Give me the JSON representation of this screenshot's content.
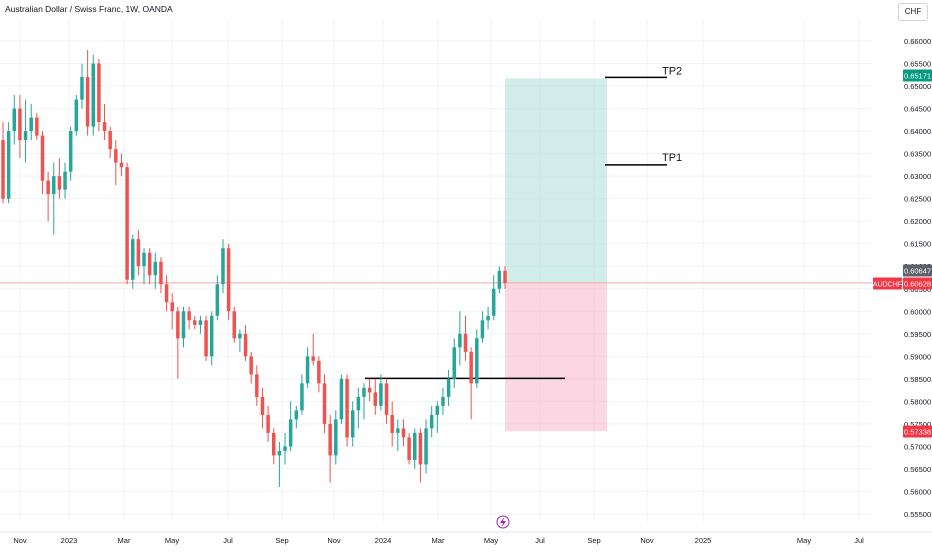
{
  "header": {
    "title": "Australian Dollar / Swiss Franc, 1W, OANDA",
    "currency": "CHF"
  },
  "colors": {
    "up": "#26a69a",
    "down": "#ef5350",
    "grid": "#f0f3fa",
    "axis_text": "#131722",
    "profit_zone": "#b2dfdb",
    "loss_zone": "#f8bbd0",
    "current_line": "#f7a8a8",
    "tp_label_bg": "#089981",
    "sl_label_bg": "#f23645"
  },
  "chart_data": {
    "type": "candlestick",
    "symbol": "AUDCHF",
    "y_ticks": [
      "0.66000",
      "0.65500",
      "0.65000",
      "0.64500",
      "0.64000",
      "0.63500",
      "0.63000",
      "0.62500",
      "0.62000",
      "0.61500",
      "0.61000",
      "0.60500",
      "0.60000",
      "0.59500",
      "0.59000",
      "0.58500",
      "0.58000",
      "0.57500",
      "0.57000",
      "0.56500",
      "0.56000",
      "0.55500"
    ],
    "ylim": [
      0.5525,
      0.6625
    ],
    "x_ticks": [
      "Nov",
      "2023",
      "Mar",
      "May",
      "Jul",
      "Sep",
      "Nov",
      "2024",
      "Mar",
      "May",
      "Jul",
      "Sep",
      "Nov",
      "2025",
      "May",
      "Jul"
    ],
    "price_labels": {
      "last_price": "0.60647",
      "symbol_label": "AUDCHF",
      "symbol_price": "0.60628",
      "take_profit": "0.65171",
      "stop_loss": "0.57338"
    },
    "annotations": {
      "tp1_label": "TP1",
      "tp2_label": "TP2"
    },
    "levels": {
      "tp1": 0.6325,
      "tp2": 0.6517,
      "entry": 0.6063,
      "stop": 0.5734,
      "support": 0.5851
    },
    "candles_ohlc": [
      [
        0.638,
        0.642,
        0.624,
        0.625
      ],
      [
        0.625,
        0.642,
        0.624,
        0.64
      ],
      [
        0.64,
        0.648,
        0.637,
        0.645
      ],
      [
        0.645,
        0.648,
        0.634,
        0.638
      ],
      [
        0.638,
        0.647,
        0.633,
        0.64
      ],
      [
        0.64,
        0.646,
        0.638,
        0.643
      ],
      [
        0.643,
        0.644,
        0.638,
        0.639
      ],
      [
        0.639,
        0.64,
        0.626,
        0.629
      ],
      [
        0.629,
        0.631,
        0.62,
        0.626
      ],
      [
        0.626,
        0.633,
        0.617,
        0.63
      ],
      [
        0.63,
        0.634,
        0.625,
        0.627
      ],
      [
        0.627,
        0.633,
        0.625,
        0.631
      ],
      [
        0.631,
        0.641,
        0.629,
        0.64
      ],
      [
        0.64,
        0.648,
        0.639,
        0.647
      ],
      [
        0.647,
        0.655,
        0.645,
        0.652
      ],
      [
        0.652,
        0.658,
        0.639,
        0.641
      ],
      [
        0.641,
        0.657,
        0.639,
        0.655
      ],
      [
        0.655,
        0.656,
        0.64,
        0.642
      ],
      [
        0.642,
        0.646,
        0.638,
        0.64
      ],
      [
        0.64,
        0.641,
        0.634,
        0.636
      ],
      [
        0.636,
        0.638,
        0.628,
        0.633
      ],
      [
        0.633,
        0.635,
        0.63,
        0.632
      ],
      [
        0.632,
        0.633,
        0.606,
        0.607
      ],
      [
        0.607,
        0.617,
        0.605,
        0.616
      ],
      [
        0.616,
        0.618,
        0.608,
        0.61
      ],
      [
        0.61,
        0.614,
        0.606,
        0.613
      ],
      [
        0.613,
        0.614,
        0.606,
        0.608
      ],
      [
        0.608,
        0.613,
        0.605,
        0.611
      ],
      [
        0.611,
        0.612,
        0.604,
        0.606
      ],
      [
        0.606,
        0.608,
        0.6,
        0.602
      ],
      [
        0.602,
        0.604,
        0.596,
        0.6
      ],
      [
        0.6,
        0.601,
        0.585,
        0.594
      ],
      [
        0.594,
        0.601,
        0.592,
        0.6
      ],
      [
        0.6,
        0.601,
        0.596,
        0.598
      ],
      [
        0.598,
        0.599,
        0.596,
        0.597
      ],
      [
        0.597,
        0.599,
        0.595,
        0.598
      ],
      [
        0.598,
        0.599,
        0.589,
        0.59
      ],
      [
        0.59,
        0.6,
        0.588,
        0.599
      ],
      [
        0.599,
        0.608,
        0.598,
        0.606
      ],
      [
        0.606,
        0.616,
        0.604,
        0.614
      ],
      [
        0.614,
        0.615,
        0.598,
        0.6
      ],
      [
        0.6,
        0.601,
        0.593,
        0.594
      ],
      [
        0.594,
        0.596,
        0.591,
        0.595
      ],
      [
        0.595,
        0.597,
        0.589,
        0.59
      ],
      [
        0.59,
        0.591,
        0.584,
        0.586
      ],
      [
        0.586,
        0.588,
        0.579,
        0.581
      ],
      [
        0.581,
        0.583,
        0.574,
        0.577
      ],
      [
        0.577,
        0.579,
        0.571,
        0.573
      ],
      [
        0.573,
        0.574,
        0.566,
        0.568
      ],
      [
        0.568,
        0.571,
        0.561,
        0.569
      ],
      [
        0.569,
        0.573,
        0.566,
        0.57
      ],
      [
        0.57,
        0.58,
        0.569,
        0.576
      ],
      [
        0.576,
        0.579,
        0.574,
        0.578
      ],
      [
        0.578,
        0.586,
        0.577,
        0.584
      ],
      [
        0.584,
        0.592,
        0.583,
        0.59
      ],
      [
        0.59,
        0.595,
        0.588,
        0.589
      ],
      [
        0.589,
        0.59,
        0.582,
        0.584
      ],
      [
        0.584,
        0.586,
        0.573,
        0.575
      ],
      [
        0.575,
        0.577,
        0.562,
        0.568
      ],
      [
        0.568,
        0.578,
        0.566,
        0.576
      ],
      [
        0.576,
        0.586,
        0.575,
        0.585
      ],
      [
        0.585,
        0.586,
        0.57,
        0.572
      ],
      [
        0.572,
        0.58,
        0.57,
        0.578
      ],
      [
        0.578,
        0.583,
        0.574,
        0.581
      ],
      [
        0.581,
        0.584,
        0.576,
        0.583
      ],
      [
        0.583,
        0.585,
        0.58,
        0.582
      ],
      [
        0.582,
        0.585,
        0.577,
        0.579
      ],
      [
        0.579,
        0.586,
        0.578,
        0.584
      ],
      [
        0.584,
        0.585,
        0.575,
        0.577
      ],
      [
        0.577,
        0.58,
        0.57,
        0.573
      ],
      [
        0.573,
        0.576,
        0.569,
        0.574
      ],
      [
        0.574,
        0.576,
        0.57,
        0.572
      ],
      [
        0.572,
        0.573,
        0.566,
        0.567
      ],
      [
        0.567,
        0.574,
        0.565,
        0.573
      ],
      [
        0.573,
        0.574,
        0.562,
        0.566
      ],
      [
        0.566,
        0.576,
        0.564,
        0.574
      ],
      [
        0.574,
        0.579,
        0.572,
        0.577
      ],
      [
        0.577,
        0.58,
        0.573,
        0.579
      ],
      [
        0.579,
        0.583,
        0.577,
        0.581
      ],
      [
        0.581,
        0.587,
        0.579,
        0.585
      ],
      [
        0.585,
        0.594,
        0.583,
        0.592
      ],
      [
        0.592,
        0.6,
        0.588,
        0.595
      ],
      [
        0.595,
        0.599,
        0.589,
        0.591
      ],
      [
        0.591,
        0.592,
        0.576,
        0.584
      ],
      [
        0.584,
        0.596,
        0.583,
        0.594
      ],
      [
        0.594,
        0.6,
        0.593,
        0.598
      ],
      [
        0.598,
        0.601,
        0.596,
        0.599
      ],
      [
        0.599,
        0.608,
        0.598,
        0.605
      ],
      [
        0.605,
        0.61,
        0.604,
        0.609
      ],
      [
        0.609,
        0.61,
        0.605,
        0.6063
      ]
    ]
  }
}
